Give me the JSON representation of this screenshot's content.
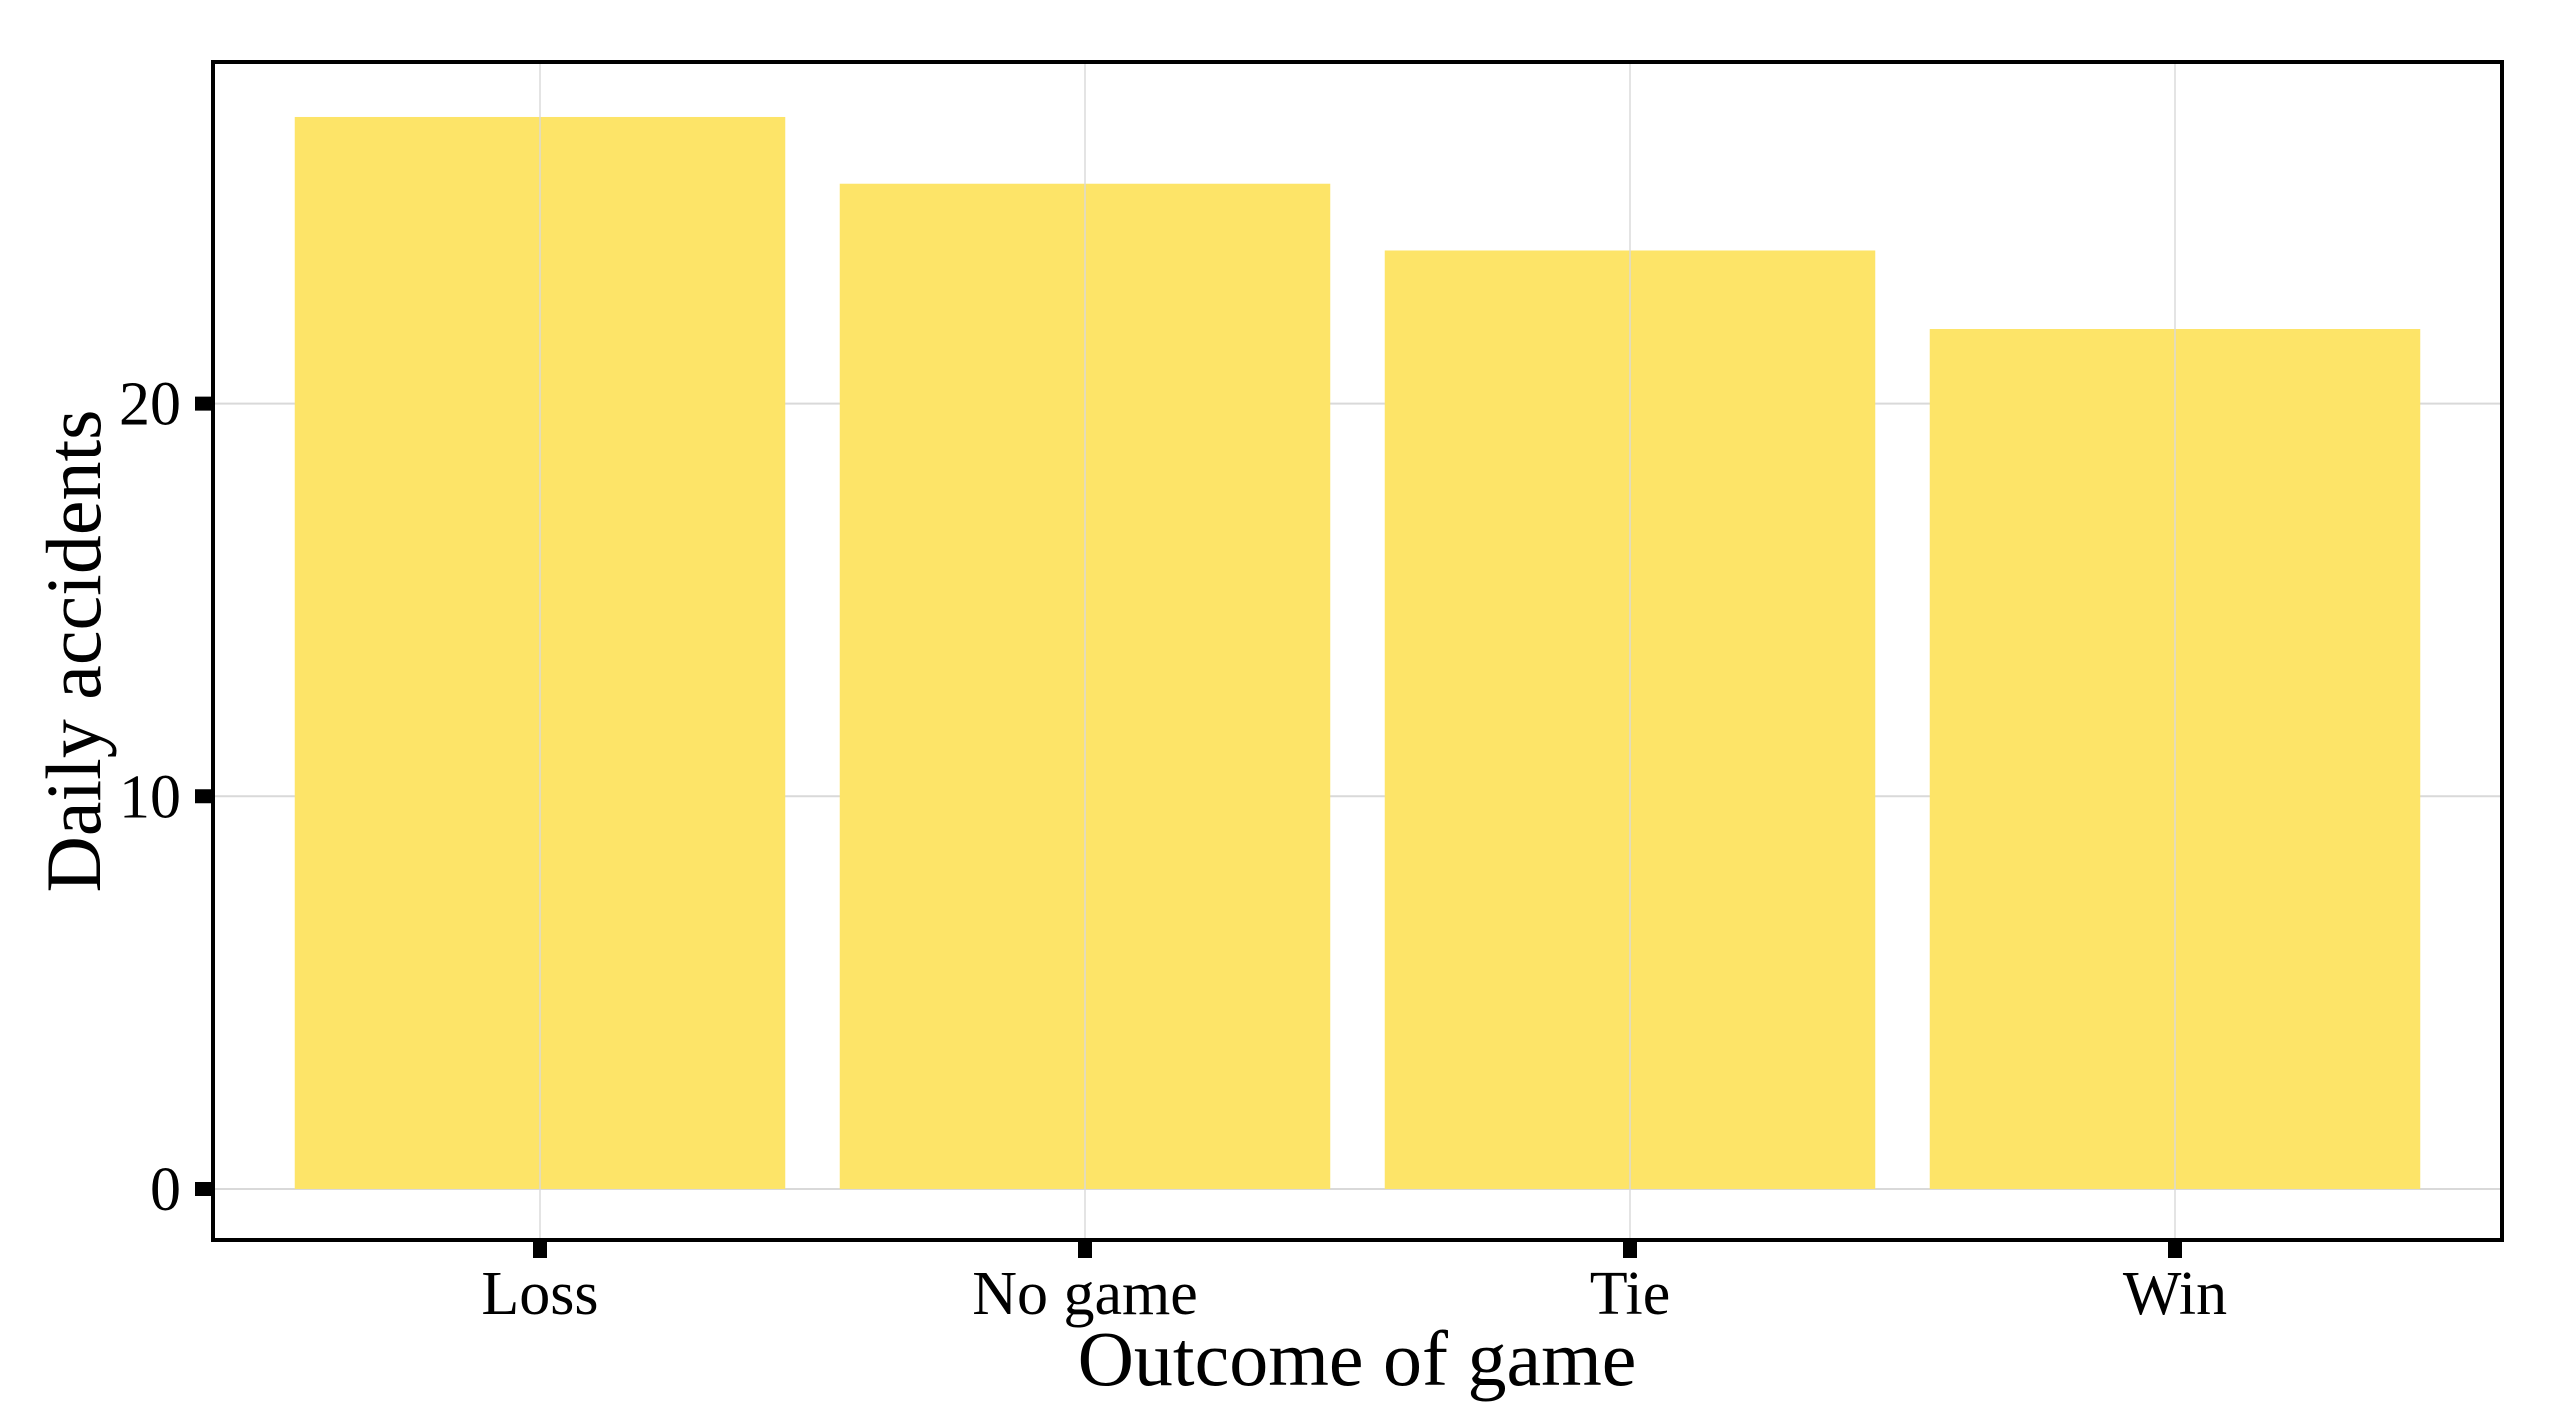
{
  "chart_data": {
    "type": "bar",
    "title": "",
    "xlabel": "Outcome of game",
    "ylabel": "Daily accidents",
    "categories": [
      "Loss",
      "No game",
      "Tie",
      "Win"
    ],
    "values": [
      27.3,
      25.6,
      23.9,
      21.9
    ],
    "ylim": [
      -1.3,
      28.7
    ],
    "yticks": [
      0,
      10,
      20
    ],
    "ytick_labels": [
      "0",
      "10",
      "20"
    ],
    "grid": true,
    "legend": "none",
    "colors": {
      "bar": "#FDE468",
      "grid": "#d9d9d9",
      "axis": "#000000"
    }
  }
}
